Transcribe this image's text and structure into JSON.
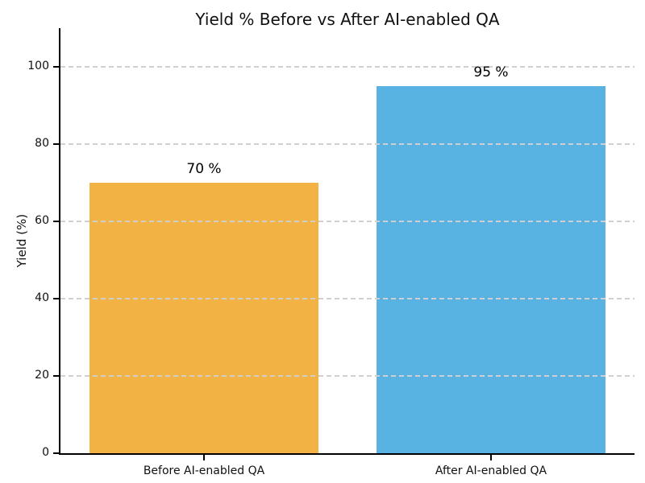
{
  "chart_data": {
    "type": "bar",
    "title": "Yield % Before vs After AI-enabled QA",
    "xlabel": "",
    "ylabel": "Yield (%)",
    "categories": [
      "Before AI-enabled QA",
      "After AI-enabled QA"
    ],
    "values": [
      70,
      95
    ],
    "bar_labels": [
      "70 %",
      "95 %"
    ],
    "bar_colors": [
      "#F2B244",
      "#58B3E2"
    ],
    "yticks": [
      0,
      20,
      40,
      60,
      80,
      100
    ],
    "ylim": [
      0,
      110
    ],
    "bar_width_fraction": 0.8,
    "grid": "horizontal-dashed-above-bars",
    "grid_color": "#cfcfcf",
    "legend": "none",
    "background_color": "#ffffff"
  }
}
